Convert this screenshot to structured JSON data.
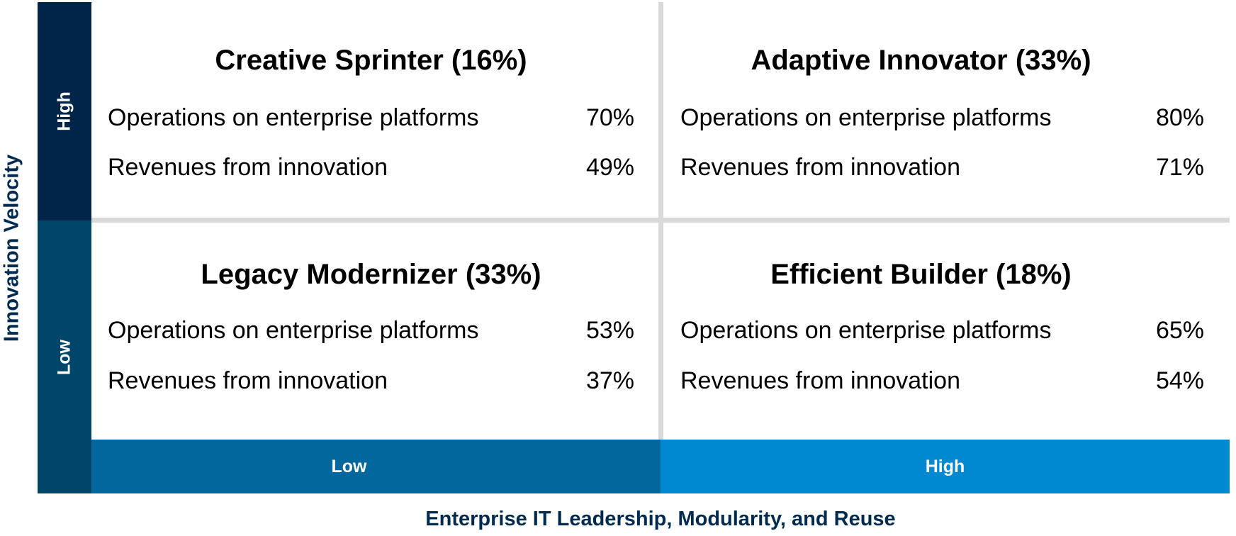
{
  "y_axis": {
    "title": "Innovation Velocity",
    "high_label": "High",
    "low_label": "Low"
  },
  "x_axis": {
    "title": "Enterprise IT Leadership, Modularity, and Reuse",
    "low_label": "Low",
    "high_label": "High"
  },
  "quadrants": [
    {
      "title": "Creative Sprinter (16%)",
      "rows": [
        {
          "label": "Operations on enterprise platforms",
          "value": "70%"
        },
        {
          "label": "Revenues from innovation",
          "value": "49%"
        }
      ]
    },
    {
      "title": "Adaptive Innovator (33%)",
      "rows": [
        {
          "label": "Operations on enterprise platforms",
          "value": "80%"
        },
        {
          "label": "Revenues from innovation",
          "value": "71%"
        }
      ]
    },
    {
      "title": "Legacy Modernizer (33%)",
      "rows": [
        {
          "label": "Operations on enterprise platforms",
          "value": "53%"
        },
        {
          "label": "Revenues from innovation",
          "value": "37%"
        }
      ]
    },
    {
      "title": "Efficient Builder (18%)",
      "rows": [
        {
          "label": "Operations on enterprise platforms",
          "value": "65%"
        },
        {
          "label": "Revenues from innovation",
          "value": "54%"
        }
      ]
    }
  ],
  "colors": {
    "y_high": "#002548",
    "y_low": "#00466b",
    "x_low": "#01679c",
    "x_high": "#0088d1",
    "divider": "#d9d9d9",
    "axis_title": "#002b4f"
  }
}
